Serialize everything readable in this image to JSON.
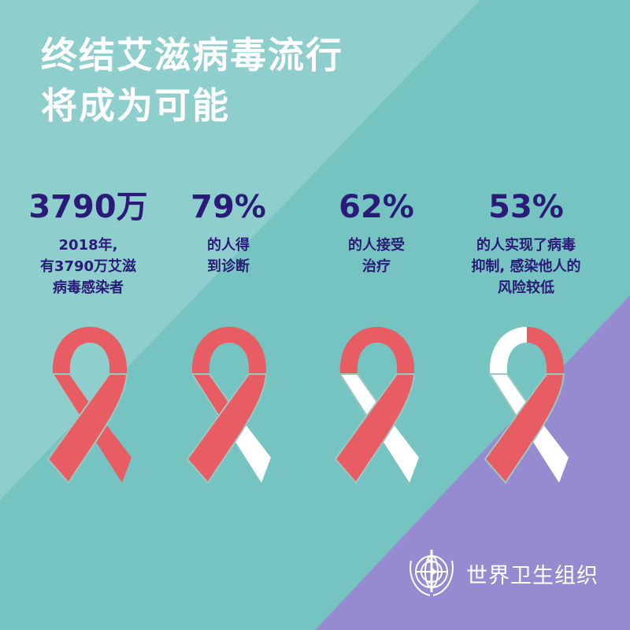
{
  "title": {
    "line1": "终结艾滋病毒流行",
    "line2": "将成为可能"
  },
  "stats": [
    {
      "value": "3790万",
      "desc": [
        "2018年,",
        "有3790万艾滋",
        "病毒感染者"
      ]
    },
    {
      "value": "79%",
      "desc": [
        "的人得",
        "到诊断"
      ]
    },
    {
      "value": "62%",
      "desc": [
        "的人接受",
        "治疗"
      ]
    },
    {
      "value": "53%",
      "desc": [
        "的人实现了病毒",
        "抑制, 感染他人的",
        "风险较低"
      ]
    }
  ],
  "ribbons": [
    {
      "loopL": "red",
      "loopR": "red",
      "backUpper": "red",
      "backLower": "red",
      "front": "red"
    },
    {
      "loopL": "red",
      "loopR": "red",
      "backUpper": "red",
      "backLower": "white",
      "front": "red"
    },
    {
      "loopL": "red",
      "loopR": "red",
      "backUpper": "white",
      "backLower": "white",
      "front": "red"
    },
    {
      "loopL": "white",
      "loopR": "red",
      "backUpper": "white",
      "backLower": "white",
      "front": "red"
    }
  ],
  "colors": {
    "background": "#76c4c2",
    "light_band": "#8ecfcd",
    "purple": "#968bd0",
    "red": "#e85c63",
    "white": "#ffffff",
    "text": "#2b1b78"
  },
  "logo": {
    "icon": "who-emblem-icon",
    "text": "世界卫生组织"
  }
}
